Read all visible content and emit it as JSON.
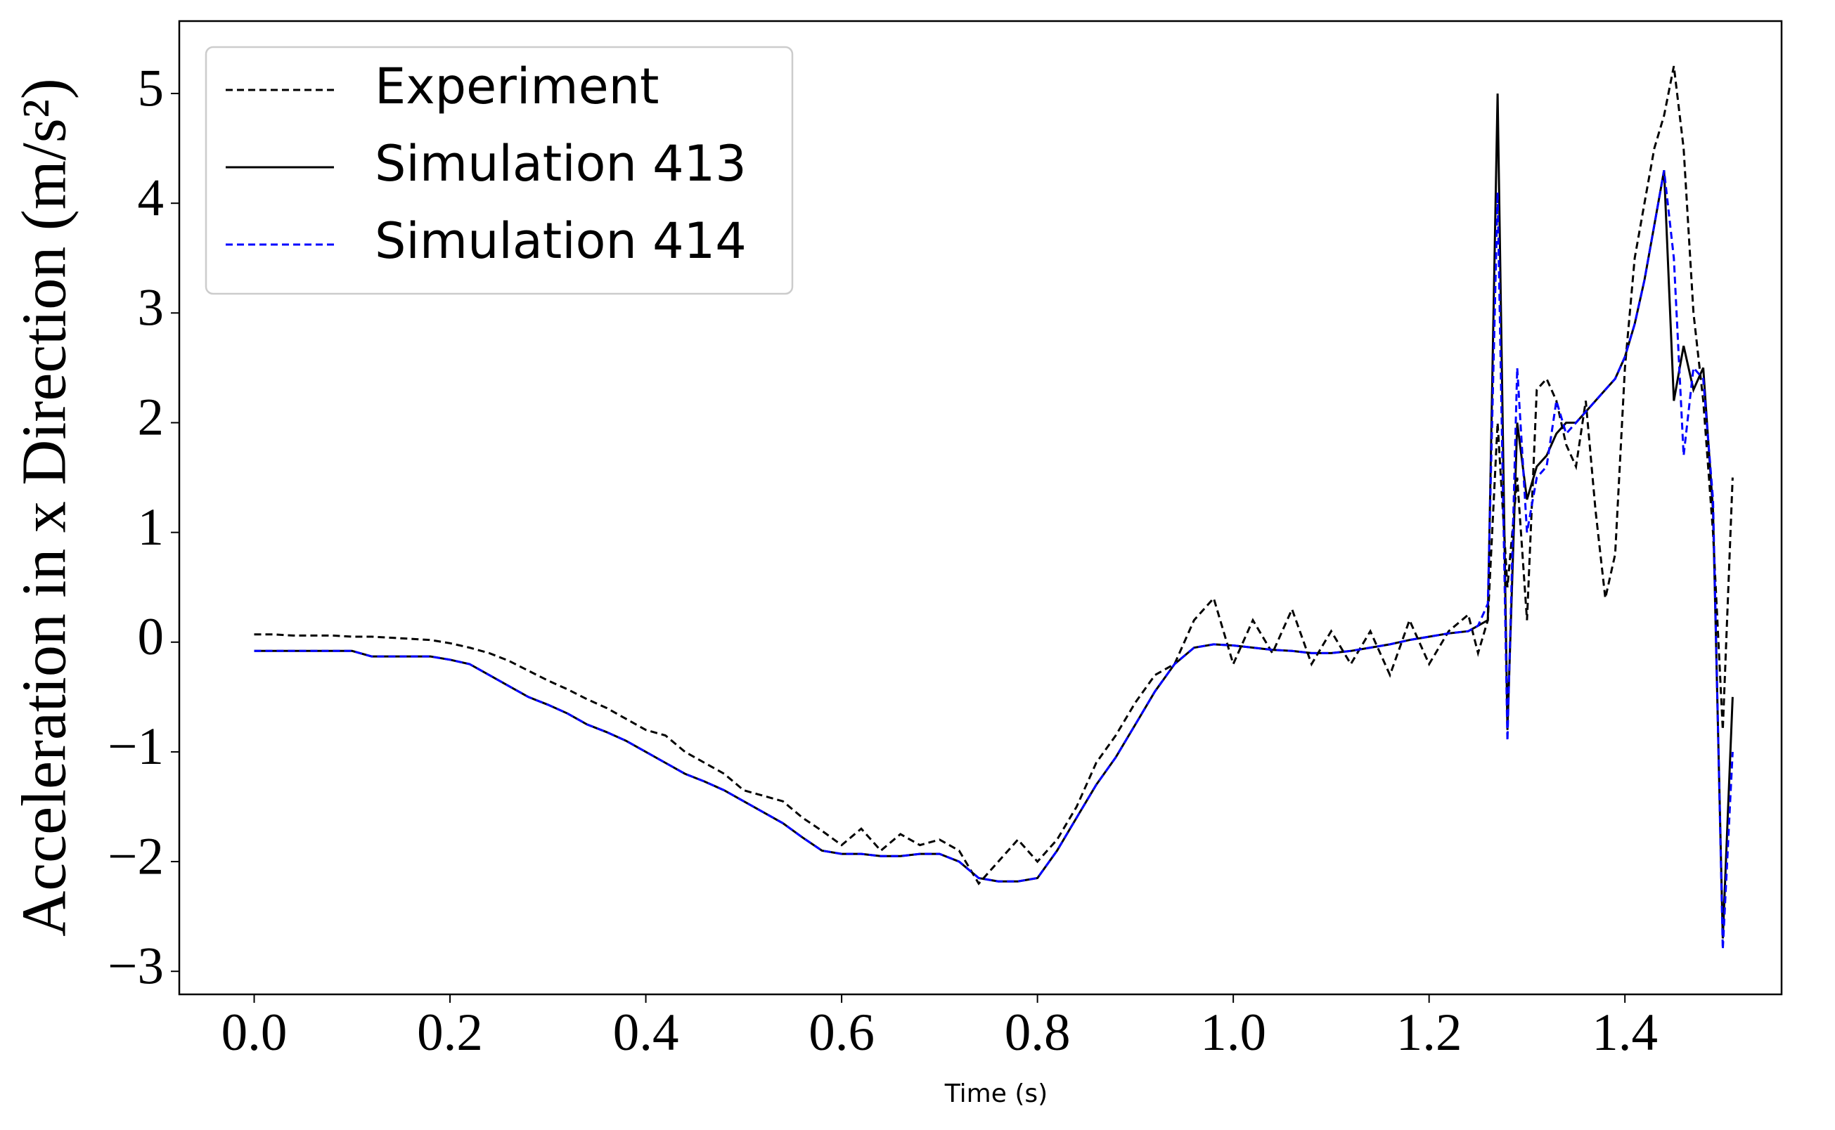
{
  "chart_data": {
    "type": "line",
    "x_label": "Time (s)",
    "y_label": "Acceleration in x Direction (m/s²)",
    "x": [
      0,
      0.02,
      0.04,
      0.06,
      0.08,
      0.1,
      0.12,
      0.14,
      0.16,
      0.18,
      0.2,
      0.22,
      0.24,
      0.26,
      0.28,
      0.3,
      0.32,
      0.34,
      0.36,
      0.38,
      0.4,
      0.42,
      0.44,
      0.46,
      0.48,
      0.5,
      0.52,
      0.54,
      0.56,
      0.58,
      0.6,
      0.62,
      0.64,
      0.66,
      0.68,
      0.7,
      0.72,
      0.74,
      0.76,
      0.78,
      0.8,
      0.82,
      0.84,
      0.86,
      0.88,
      0.9,
      0.92,
      0.94,
      0.96,
      0.98,
      1.0,
      1.02,
      1.04,
      1.06,
      1.08,
      1.1,
      1.12,
      1.14,
      1.16,
      1.18,
      1.2,
      1.22,
      1.24,
      1.25,
      1.26,
      1.27,
      1.28,
      1.29,
      1.3,
      1.31,
      1.32,
      1.33,
      1.34,
      1.35,
      1.36,
      1.37,
      1.38,
      1.39,
      1.4,
      1.41,
      1.42,
      1.43,
      1.44,
      1.45,
      1.46,
      1.47,
      1.48,
      1.49,
      1.5,
      1.51
    ],
    "series": [
      {
        "name": "Experiment",
        "color": "#000000",
        "dash": true,
        "values": [
          0.07,
          0.07,
          0.06,
          0.06,
          0.06,
          0.05,
          0.05,
          0.04,
          0.03,
          0.02,
          -0.01,
          -0.05,
          -0.1,
          -0.17,
          -0.26,
          -0.35,
          -0.43,
          -0.52,
          -0.6,
          -0.7,
          -0.8,
          -0.85,
          -1.0,
          -1.1,
          -1.2,
          -1.35,
          -1.4,
          -1.45,
          -1.6,
          -1.72,
          -1.85,
          -1.7,
          -1.9,
          -1.75,
          -1.85,
          -1.8,
          -1.9,
          -2.2,
          -2.0,
          -1.8,
          -2.0,
          -1.8,
          -1.5,
          -1.1,
          -0.85,
          -0.55,
          -0.3,
          -0.2,
          0.2,
          0.4,
          -0.2,
          0.2,
          -0.1,
          0.3,
          -0.2,
          0.1,
          -0.2,
          0.1,
          -0.3,
          0.2,
          -0.2,
          0.1,
          0.25,
          -0.1,
          0.2,
          2.0,
          0.5,
          1.5,
          0.2,
          2.3,
          2.4,
          2.2,
          1.8,
          1.6,
          2.2,
          1.2,
          0.4,
          0.8,
          2.5,
          3.5,
          4.0,
          4.5,
          4.8,
          5.25,
          4.5,
          3.0,
          2.2,
          1.0,
          -0.8,
          1.5
        ]
      },
      {
        "name": "Simulation 413",
        "color": "#000000",
        "dash": false,
        "values": [
          -0.08,
          -0.08,
          -0.08,
          -0.08,
          -0.08,
          -0.08,
          -0.13,
          -0.13,
          -0.13,
          -0.13,
          -0.16,
          -0.2,
          -0.3,
          -0.4,
          -0.5,
          -0.57,
          -0.65,
          -0.75,
          -0.82,
          -0.9,
          -1.0,
          -1.1,
          -1.2,
          -1.27,
          -1.35,
          -1.45,
          -1.55,
          -1.65,
          -1.78,
          -1.9,
          -1.93,
          -1.93,
          -1.95,
          -1.95,
          -1.93,
          -1.93,
          -2.0,
          -2.15,
          -2.18,
          -2.18,
          -2.15,
          -1.9,
          -1.6,
          -1.3,
          -1.05,
          -0.75,
          -0.45,
          -0.2,
          -0.05,
          -0.02,
          -0.03,
          -0.05,
          -0.07,
          -0.08,
          -0.1,
          -0.1,
          -0.08,
          -0.05,
          -0.02,
          0.02,
          0.05,
          0.08,
          0.1,
          0.15,
          0.2,
          5.0,
          -0.8,
          2.0,
          1.3,
          1.6,
          1.7,
          1.9,
          2.0,
          2.0,
          2.1,
          2.2,
          2.3,
          2.4,
          2.6,
          2.9,
          3.3,
          3.8,
          4.3,
          2.2,
          2.7,
          2.3,
          2.5,
          1.2,
          -2.7,
          -0.5
        ]
      },
      {
        "name": "Simulation 414",
        "color": "#0000ff",
        "dash": true,
        "values": [
          -0.08,
          -0.08,
          -0.08,
          -0.08,
          -0.08,
          -0.08,
          -0.13,
          -0.13,
          -0.13,
          -0.13,
          -0.16,
          -0.2,
          -0.3,
          -0.4,
          -0.5,
          -0.57,
          -0.65,
          -0.75,
          -0.82,
          -0.9,
          -1.0,
          -1.1,
          -1.2,
          -1.27,
          -1.35,
          -1.45,
          -1.55,
          -1.65,
          -1.78,
          -1.9,
          -1.93,
          -1.93,
          -1.95,
          -1.95,
          -1.93,
          -1.93,
          -2.0,
          -2.15,
          -2.18,
          -2.18,
          -2.15,
          -1.9,
          -1.6,
          -1.3,
          -1.05,
          -0.75,
          -0.45,
          -0.2,
          -0.05,
          -0.02,
          -0.03,
          -0.05,
          -0.07,
          -0.08,
          -0.1,
          -0.1,
          -0.08,
          -0.05,
          -0.02,
          0.02,
          0.05,
          0.08,
          0.1,
          0.15,
          0.35,
          4.1,
          -0.9,
          2.5,
          1.0,
          1.5,
          1.6,
          2.2,
          1.9,
          2.0,
          2.1,
          2.2,
          2.3,
          2.4,
          2.6,
          2.9,
          3.3,
          3.8,
          4.3,
          3.5,
          1.7,
          2.5,
          2.4,
          1.3,
          -2.8,
          -1.0
        ]
      }
    ],
    "xlim": [
      -0.0765,
      1.56
    ],
    "ylim": [
      -3.21,
      5.66
    ],
    "xticks": [
      {
        "value": 0,
        "label": "0.0"
      },
      {
        "value": 0.2,
        "label": "0.2"
      },
      {
        "value": 0.4,
        "label": "0.4"
      },
      {
        "value": 0.6,
        "label": "0.6"
      },
      {
        "value": 0.8,
        "label": "0.8"
      },
      {
        "value": 1.0,
        "label": "1.0"
      },
      {
        "value": 1.2,
        "label": "1.2"
      },
      {
        "value": 1.4,
        "label": "1.4"
      }
    ],
    "yticks": [
      {
        "value": -3,
        "label": "−3"
      },
      {
        "value": -2,
        "label": "−2"
      },
      {
        "value": -1,
        "label": "−1"
      },
      0,
      1,
      2,
      3,
      4,
      5
    ],
    "grid": false,
    "legend": "upper left"
  }
}
